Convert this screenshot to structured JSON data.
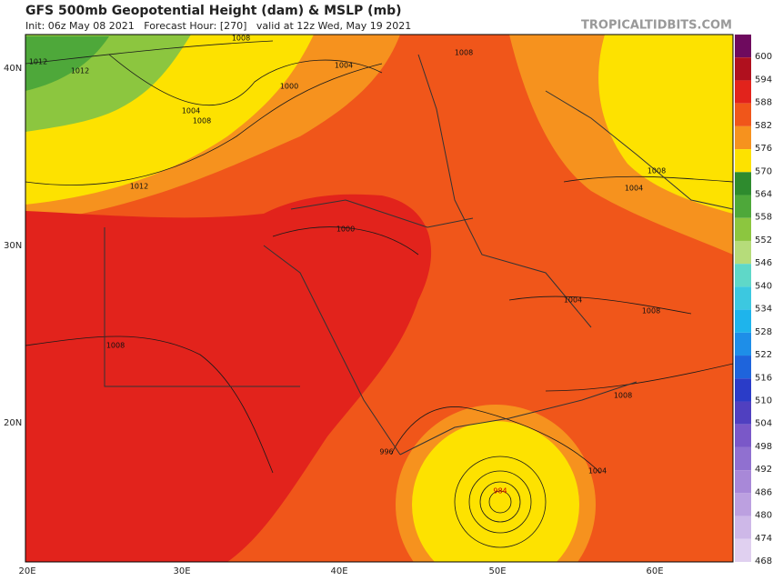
{
  "header": {
    "title": "GFS 500mb Geopotential Height (dam) & MSLP (mb)",
    "subtitle": "Init: 06z May 08 2021   Forecast Hour: [270]   valid at 12z Wed, May 19 2021",
    "site": "TROPICALTIDBITS.COM"
  },
  "map": {
    "lat_labels": [
      "40N",
      "30N",
      "20N"
    ],
    "lon_labels": [
      "20E",
      "30E",
      "40E",
      "50E",
      "60E"
    ],
    "contour_labels": [
      "1012",
      "1012",
      "1008",
      "1004",
      "1000",
      "1004",
      "1008",
      "1008",
      "1012",
      "1000",
      "1008",
      "1008",
      "1004",
      "1004",
      "1008",
      "1008",
      "1004",
      "996",
      "984"
    ]
  },
  "colorbar": {
    "labels": [
      "600",
      "594",
      "588",
      "582",
      "576",
      "570",
      "564",
      "558",
      "552",
      "546",
      "540",
      "534",
      "528",
      "522",
      "516",
      "510",
      "504",
      "498",
      "492",
      "486",
      "480",
      "474",
      "468"
    ],
    "colors": [
      "#6e0a5e",
      "#b0101e",
      "#e2231c",
      "#f0561a",
      "#f6921e",
      "#fde200",
      "#2e8b2e",
      "#4ea83a",
      "#8cc63f",
      "#b6dc7a",
      "#5fd8c8",
      "#3cc8e0",
      "#1eb4ec",
      "#1e8ee8",
      "#1e64dc",
      "#2a3cc8",
      "#5040c0",
      "#7a58c8",
      "#9070d0",
      "#a888d8",
      "#bca0e0",
      "#ceb8e8",
      "#e0d0f0"
    ]
  }
}
